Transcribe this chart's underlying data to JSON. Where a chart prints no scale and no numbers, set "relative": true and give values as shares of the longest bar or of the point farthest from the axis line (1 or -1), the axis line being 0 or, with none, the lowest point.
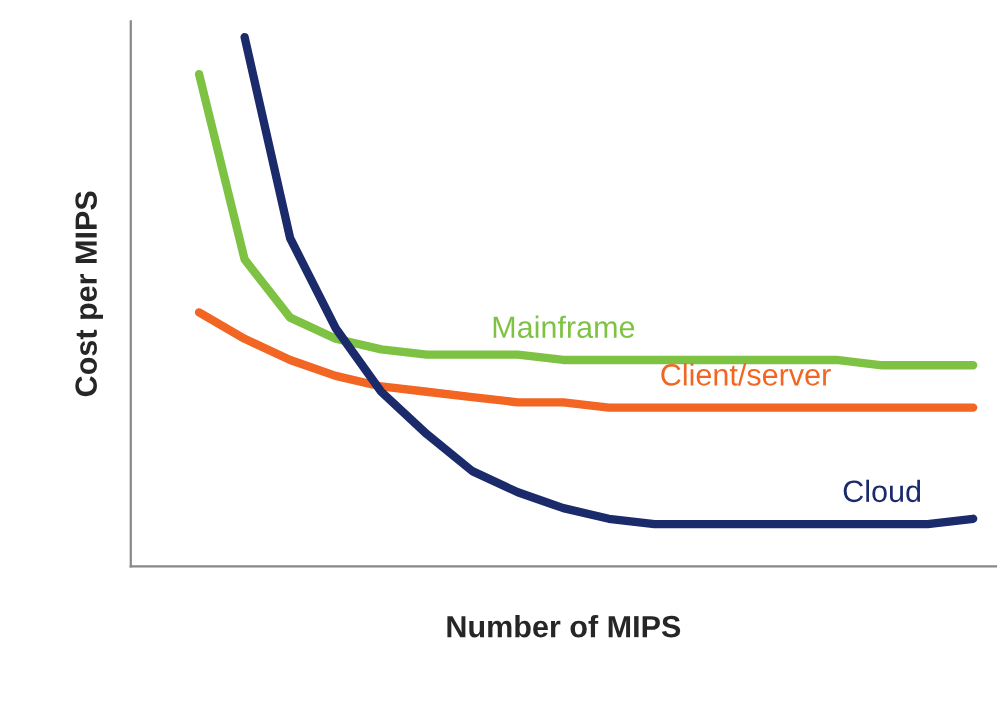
{
  "chart_data": {
    "type": "line",
    "xlabel": "Number of MIPS",
    "ylabel": "Cost per MIPS",
    "relative": true,
    "categories": [
      null,
      null,
      null,
      null,
      null,
      null,
      null,
      null,
      null,
      null,
      null,
      null,
      null,
      null,
      null,
      null,
      null,
      null,
      null
    ],
    "series": [
      {
        "name": "Mainframe",
        "color": "#7dc242",
        "values": [
          null,
          0.93,
          0.58,
          0.47,
          0.43,
          0.41,
          0.4,
          0.4,
          0.4,
          0.39,
          0.39,
          0.39,
          0.39,
          0.39,
          0.39,
          0.39,
          0.38,
          0.38,
          0.38
        ]
      },
      {
        "name": "Client/server",
        "color": "#f26522",
        "values": [
          null,
          0.48,
          0.43,
          0.39,
          0.36,
          0.34,
          0.33,
          0.32,
          0.31,
          0.31,
          0.3,
          0.3,
          0.3,
          0.3,
          0.3,
          0.3,
          0.3,
          0.3,
          0.3
        ]
      },
      {
        "name": "Cloud",
        "color": "#1b2a6b",
        "values": [
          null,
          null,
          1.0,
          0.62,
          0.45,
          0.33,
          0.25,
          0.18,
          0.14,
          0.11,
          0.09,
          0.08,
          0.08,
          0.08,
          0.08,
          0.08,
          0.08,
          0.08,
          0.09
        ]
      }
    ]
  }
}
